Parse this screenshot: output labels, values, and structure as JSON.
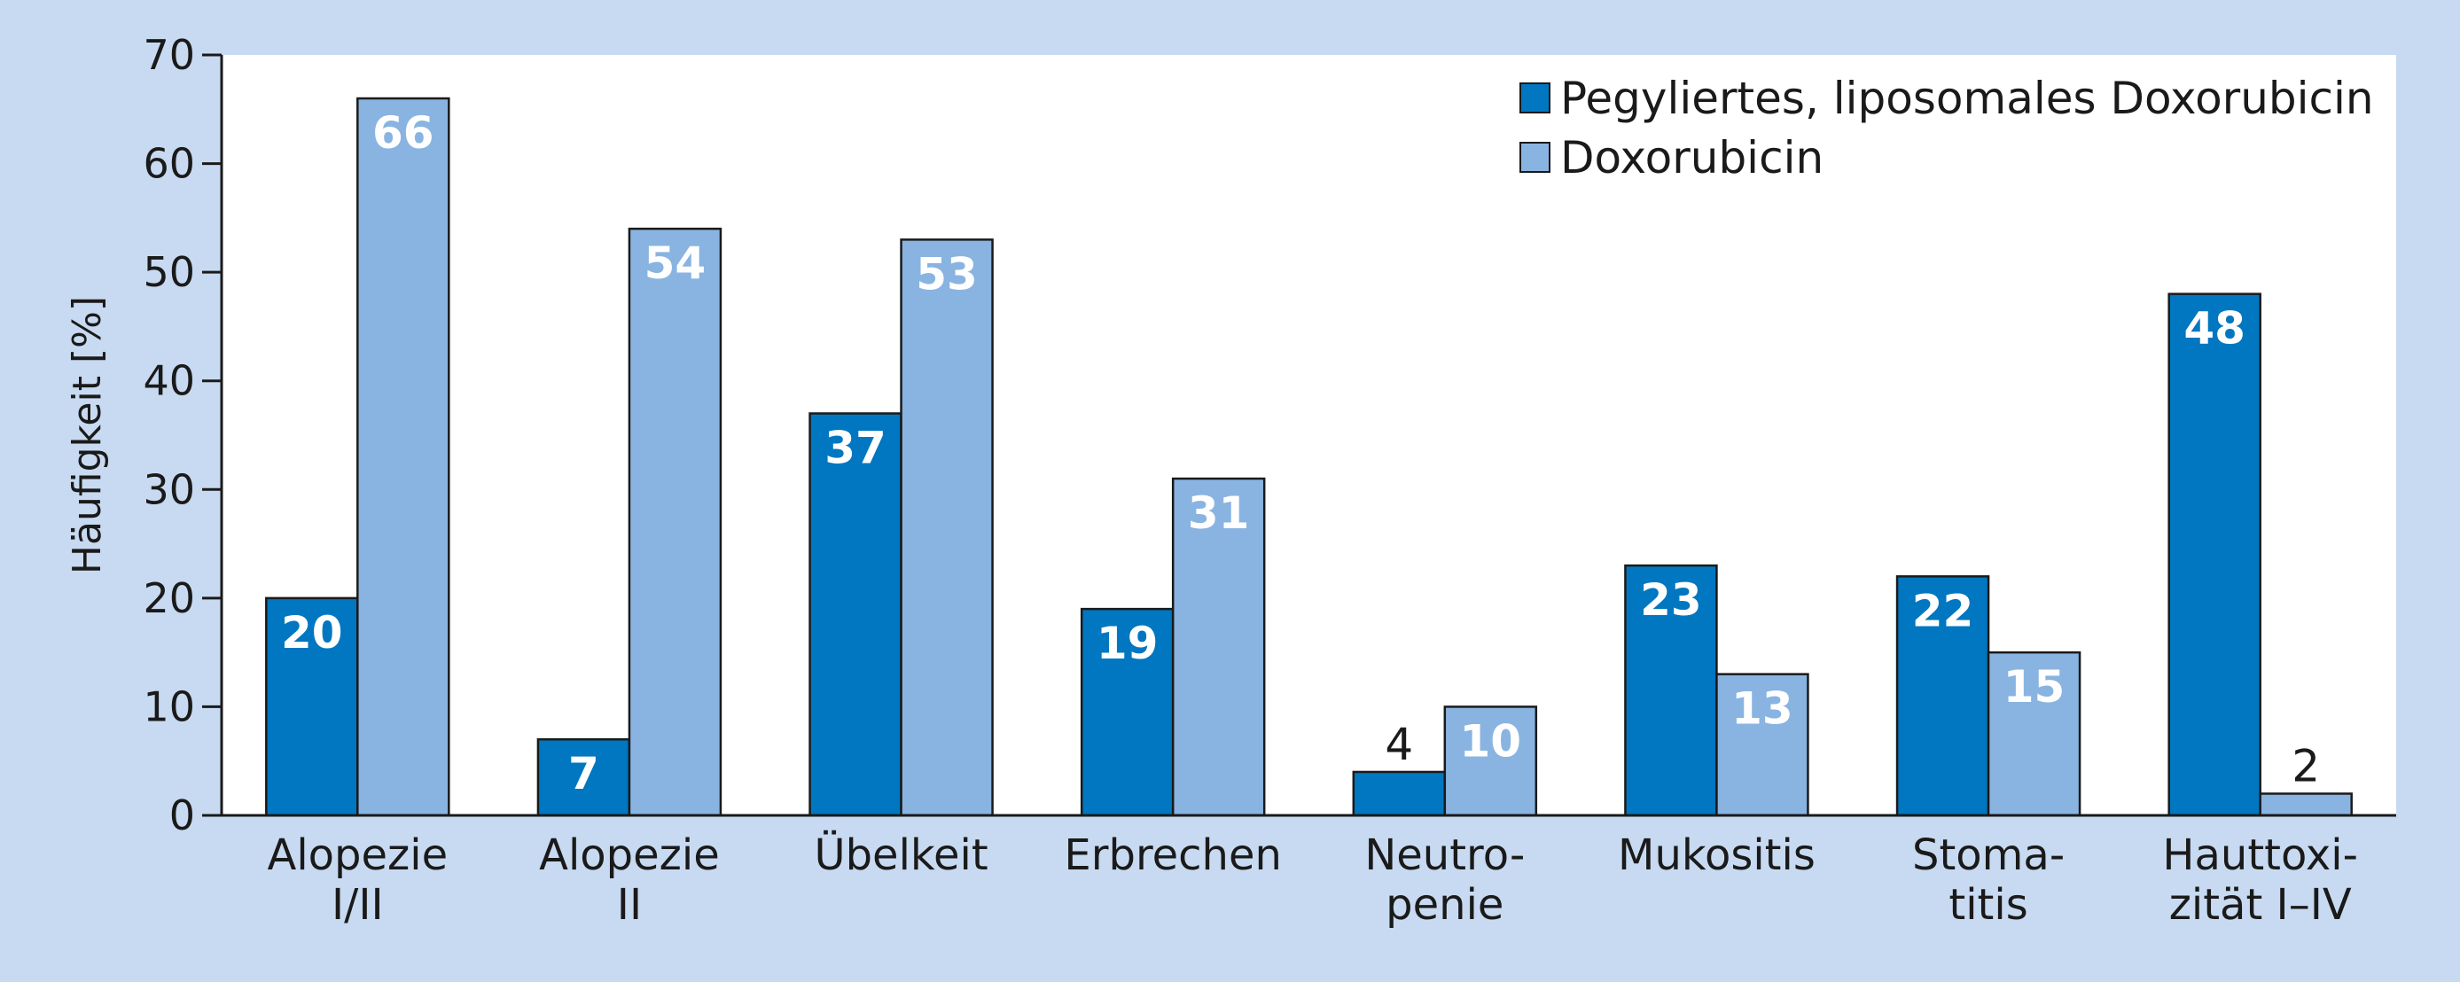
{
  "chart_data": {
    "type": "bar",
    "title": "",
    "xlabel": "",
    "ylabel": "Häufigkeit [%]",
    "ylim": [
      0,
      70
    ],
    "yticks": [
      0,
      10,
      20,
      30,
      40,
      50,
      60,
      70
    ],
    "grid": false,
    "legend_position": "top-right",
    "categories": [
      [
        "Alopezie",
        "I/II"
      ],
      [
        "Alopezie",
        "II"
      ],
      [
        "Übelkeit"
      ],
      [
        "Erbrechen"
      ],
      [
        "Neutro-",
        "penie"
      ],
      [
        "Mukositis"
      ],
      [
        "Stoma-",
        "titis"
      ],
      [
        "Hauttoxi-",
        "zität I–IV"
      ]
    ],
    "series": [
      {
        "name": "Pegyliertes, liposomales Doxorubicin",
        "color": "#0077c0",
        "values": [
          20,
          7,
          37,
          19,
          4,
          23,
          22,
          48
        ]
      },
      {
        "name": "Doxorubicin",
        "color": "#89b4e1",
        "values": [
          66,
          54,
          53,
          31,
          10,
          13,
          15,
          2
        ]
      }
    ]
  }
}
